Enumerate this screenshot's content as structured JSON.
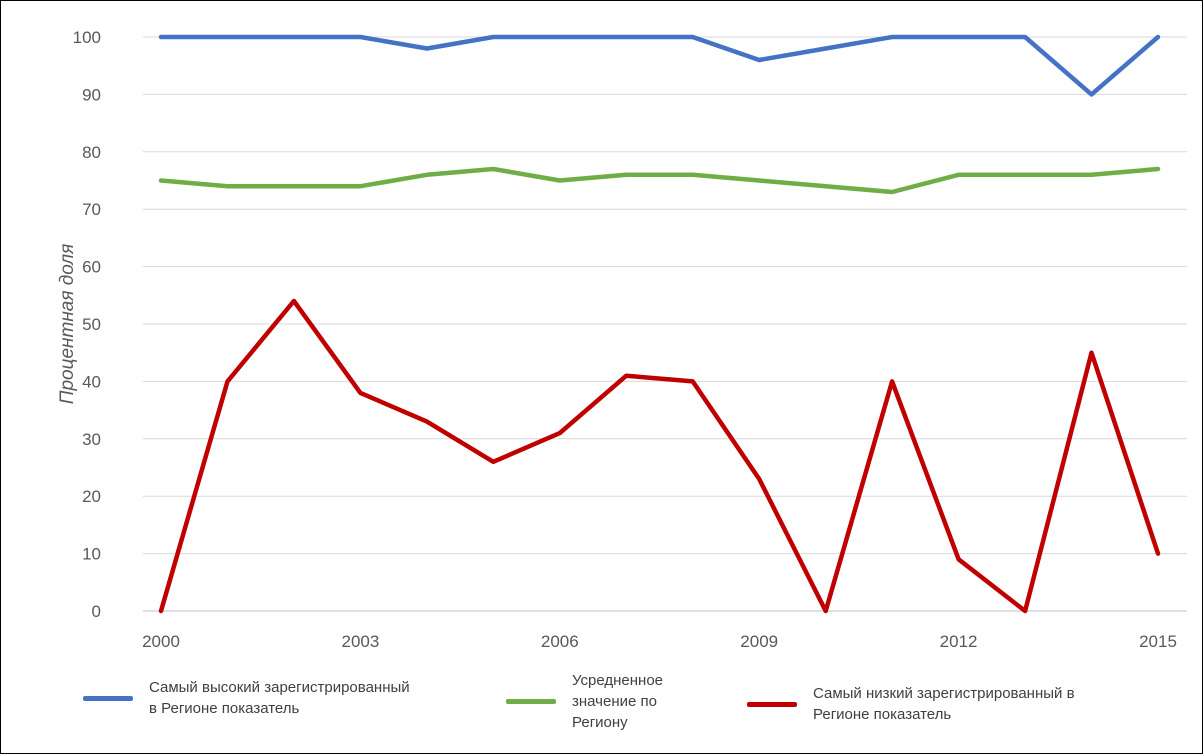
{
  "chart_data": {
    "type": "line",
    "ylabel": "Процентная доля",
    "xlabel": "",
    "x": [
      2000,
      2001,
      2002,
      2003,
      2004,
      2005,
      2006,
      2007,
      2008,
      2009,
      2010,
      2011,
      2012,
      2013,
      2014,
      2015
    ],
    "x_tick_labels": [
      "2000",
      "2003",
      "2006",
      "2009",
      "2012",
      "2015"
    ],
    "y_tick_labels": [
      "0",
      "10",
      "20",
      "30",
      "40",
      "50",
      "60",
      "70",
      "80",
      "90",
      "100"
    ],
    "ylim": [
      0,
      100
    ],
    "xlim": [
      2000,
      2015
    ],
    "grid": "horizontal",
    "legend_position": "bottom",
    "series": [
      {
        "name": "Самый высокий зарегистрированный в Регионе показатель",
        "legend_lines": [
          "Самый высокий зарегистрированный",
          "в Регионе показатель"
        ],
        "color": "#4472c4",
        "values": [
          100,
          100,
          100,
          100,
          98,
          100,
          100,
          100,
          100,
          96,
          98,
          100,
          100,
          100,
          90,
          100
        ]
      },
      {
        "name": "Усредненное значение по Региону",
        "legend_lines": [
          "Усредненное",
          "значение по",
          "Региону"
        ],
        "color": "#70ad47",
        "values": [
          75,
          74,
          74,
          74,
          76,
          77,
          75,
          76,
          76,
          75,
          74,
          73,
          76,
          76,
          76,
          77
        ]
      },
      {
        "name": "Самый низкий зарегистрированный в Регионе показатель",
        "legend_lines": [
          "Самый низкий зарегистрированный в",
          "Регионе показатель"
        ],
        "color": "#c00000",
        "values": [
          0,
          40,
          54,
          38,
          33,
          26,
          31,
          41,
          40,
          23,
          0,
          40,
          9,
          0,
          45,
          10
        ]
      }
    ]
  }
}
